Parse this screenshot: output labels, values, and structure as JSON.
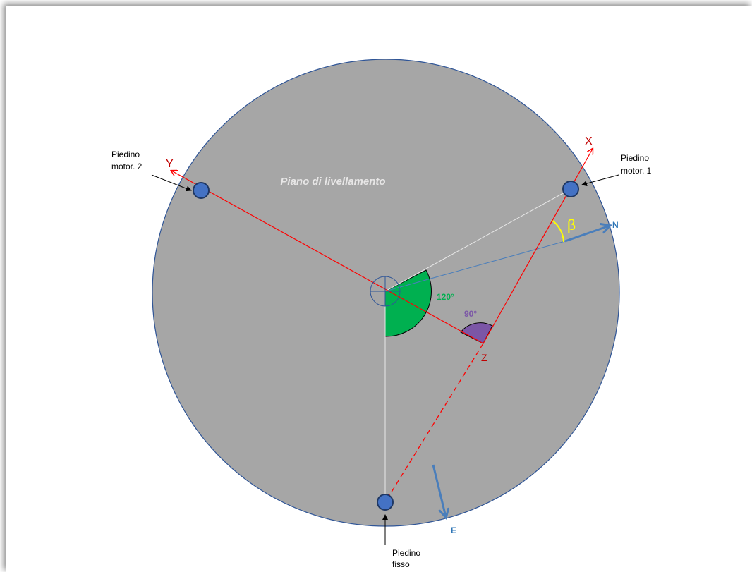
{
  "plane_label": "Piano di livellamento",
  "axes": {
    "x": "X",
    "y": "Y",
    "z": "Z"
  },
  "directions": {
    "north": "N",
    "east": "E"
  },
  "angles": {
    "a120": "120°",
    "a90": "90°",
    "beta": "β"
  },
  "feet": {
    "motor1": {
      "line1": "Piedino",
      "line2": "motor. 1"
    },
    "motor2": {
      "line1": "Piedino",
      "line2": "motor. 2"
    },
    "fixed": {
      "line1": "Piedino",
      "line2": "fisso"
    }
  },
  "colors": {
    "plate": "#a6a6a6",
    "plate_border": "#2f5597",
    "axis": "#ff0000",
    "axis_label": "#c00000",
    "north_east": "#4a7ebb",
    "angle120_fill": "#00b050",
    "angle90_fill": "#7b56a6",
    "beta": "#ffff00",
    "foot": "#4472c4"
  }
}
